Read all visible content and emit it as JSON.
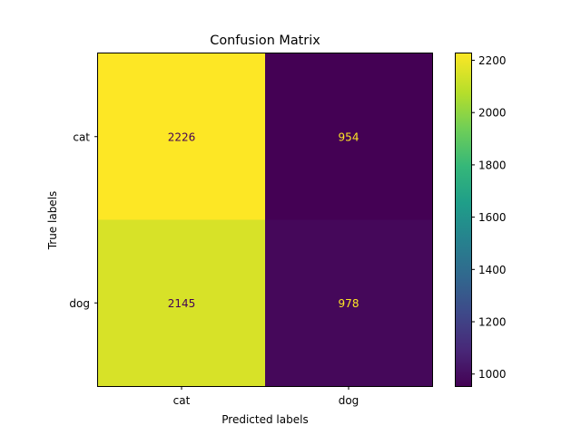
{
  "chart_data": {
    "type": "heatmap",
    "title": "Confusion Matrix",
    "xlabel": "Predicted labels",
    "ylabel": "True labels",
    "x_categories": [
      "cat",
      "dog"
    ],
    "y_categories": [
      "cat",
      "dog"
    ],
    "values": [
      [
        2226,
        954
      ],
      [
        2145,
        978
      ]
    ],
    "colormap": "viridis",
    "colorbar": {
      "range": [
        954,
        2226
      ],
      "ticks": [
        1000,
        1200,
        1400,
        1600,
        1800,
        2000,
        2200
      ]
    },
    "colors": {
      "viridis_low": "#440154",
      "viridis_high": "#fde725",
      "text_on_light": "#440154",
      "text_on_dark": "#fde725"
    }
  }
}
